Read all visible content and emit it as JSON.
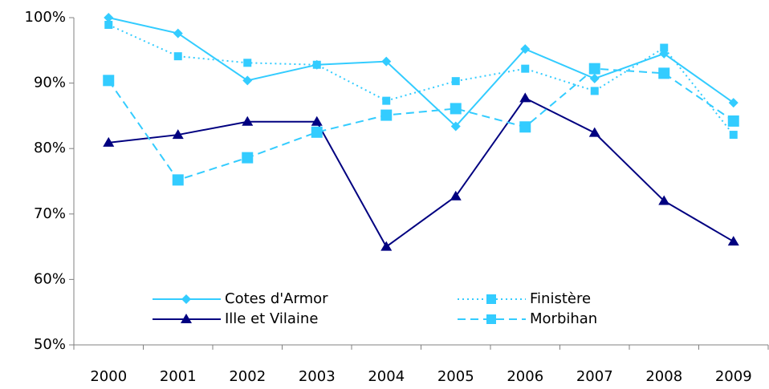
{
  "chart_data": {
    "type": "line",
    "categories": [
      "2000",
      "2001",
      "2002",
      "2003",
      "2004",
      "2005",
      "2006",
      "2007",
      "2008",
      "2009"
    ],
    "series": [
      {
        "name": "Cotes d'Armor",
        "color": "#33ccff",
        "dash": "solid",
        "marker": "diamond",
        "values": [
          100,
          97.6,
          90.4,
          92.8,
          93.3,
          83.4,
          95.2,
          90.7,
          94.5,
          87.0
        ]
      },
      {
        "name": "Finistère",
        "color": "#33ccff",
        "dash": "dotted",
        "marker": "square",
        "values": [
          98.9,
          94.1,
          93.1,
          92.8,
          87.3,
          90.3,
          92.2,
          88.8,
          95.4,
          82.1
        ]
      },
      {
        "name": "Ille et Vilaine",
        "color": "#000080",
        "dash": "solid",
        "marker": "triangle",
        "values": [
          80.9,
          82.1,
          84.1,
          84.1,
          65.0,
          72.7,
          87.7,
          82.4,
          72.0,
          65.8
        ]
      },
      {
        "name": "Morbihan",
        "color": "#33ccff",
        "dash": "dashed",
        "marker": "square",
        "values": [
          90.4,
          75.2,
          78.6,
          82.5,
          85.1,
          86.1,
          83.3,
          92.2,
          91.5,
          84.2
        ]
      }
    ],
    "ylim": [
      50,
      100
    ],
    "yticks": [
      {
        "value": 50,
        "label": "50%"
      },
      {
        "value": 60,
        "label": "60%"
      },
      {
        "value": 70,
        "label": "70%"
      },
      {
        "value": 80,
        "label": "80%"
      },
      {
        "value": 90,
        "label": "90%"
      },
      {
        "value": 100,
        "label": "100%"
      }
    ],
    "grid": false,
    "legend": "bottom"
  }
}
